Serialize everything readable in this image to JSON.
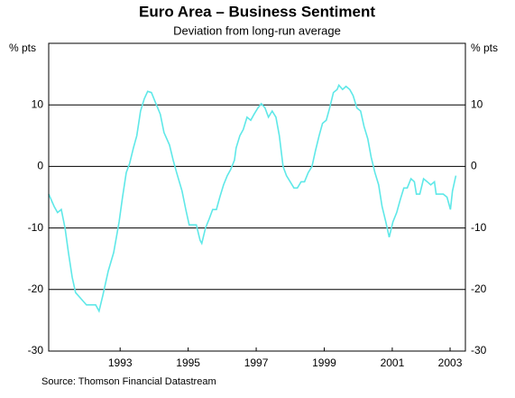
{
  "chart_data": {
    "type": "line",
    "title": "Euro Area – Business Sentiment",
    "subtitle": "Deviation from long-run average",
    "y_label": "% pts",
    "source": "Source: Thomson Financial Datastream",
    "x": [
      1991.4,
      1991.56,
      1991.66,
      1991.77,
      1991.88,
      1991.98,
      1992.09,
      1992.19,
      1992.35,
      1992.51,
      1992.78,
      1992.88,
      1992.99,
      1993.15,
      1993.31,
      1993.47,
      1993.57,
      1993.68,
      1993.78,
      1993.89,
      1993.99,
      1994.1,
      1994.21,
      1994.31,
      1994.42,
      1994.53,
      1994.68,
      1994.79,
      1994.95,
      1995.06,
      1995.16,
      1995.32,
      1995.43,
      1995.53,
      1995.74,
      1995.85,
      1995.9,
      1996.01,
      1996.12,
      1996.22,
      1996.33,
      1996.43,
      1996.54,
      1996.65,
      1996.75,
      1996.86,
      1996.91,
      1997.02,
      1997.12,
      1997.23,
      1997.34,
      1997.44,
      1997.55,
      1997.65,
      1997.76,
      1997.86,
      1997.97,
      1998.08,
      1998.18,
      1998.29,
      1998.39,
      1998.5,
      1998.61,
      1998.71,
      1998.82,
      1998.92,
      1999.03,
      1999.14,
      1999.24,
      1999.35,
      1999.45,
      1999.56,
      1999.66,
      1999.77,
      1999.88,
      1999.93,
      2000.04,
      2000.14,
      2000.25,
      2000.35,
      2000.46,
      2000.57,
      2000.67,
      2000.78,
      2000.88,
      2000.99,
      2001.1,
      2001.2,
      2001.31,
      2001.41,
      2001.52,
      2001.63,
      2001.73,
      2001.84,
      2001.94,
      2002.05,
      2002.15,
      2002.21,
      2002.31,
      2002.42,
      2002.53,
      2002.63,
      2002.74,
      2002.79,
      2003.0,
      2003.11,
      2003.21,
      2003.27,
      2003.37
    ],
    "series": [
      {
        "name": "Business sentiment",
        "color": "#5fe8e8",
        "values": [
          -4.5,
          -6.5,
          -7.5,
          -7,
          -10,
          -14,
          -18,
          -20.5,
          -21.5,
          -22.5,
          -22.5,
          -23.5,
          -21,
          -17,
          -14,
          -9,
          -5,
          -1,
          0.5,
          3,
          5,
          9,
          11,
          12.2,
          12,
          10.5,
          8.5,
          5.5,
          3.5,
          1,
          -1,
          -4,
          -7,
          -9.5,
          -9.5,
          -12,
          -12.5,
          -10,
          -8.5,
          -7,
          -7,
          -5,
          -3,
          -1.5,
          -0.5,
          1,
          3,
          5,
          6,
          8,
          7.5,
          8.5,
          9.5,
          10.2,
          9.5,
          8,
          9,
          8,
          5,
          0,
          -1.5,
          -2.5,
          -3.5,
          -3.5,
          -2.5,
          -2.5,
          -1,
          0,
          2.5,
          5,
          7,
          7.5,
          9.5,
          12,
          12.5,
          13.2,
          12.5,
          13,
          12.5,
          11.5,
          9.5,
          9,
          6.5,
          4.5,
          1.5,
          -1,
          -3,
          -6.5,
          -9,
          -11.5,
          -9,
          -7.5,
          -5.5,
          -3.5,
          -3.5,
          -2,
          -2.5,
          -4.5,
          -4.5,
          -2,
          -2.5,
          -3,
          -2.5,
          -4.5,
          -4.5,
          -5,
          -7,
          -4,
          -1.5
        ]
      }
    ],
    "xlim": [
      1991.4,
      2003.65
    ],
    "xticks": [
      {
        "value": 1993.5,
        "label": "1993"
      },
      {
        "value": 1995.5,
        "label": "1995"
      },
      {
        "value": 1997.5,
        "label": "1997"
      },
      {
        "value": 1999.5,
        "label": "1999"
      },
      {
        "value": 2001.5,
        "label": "2001"
      },
      {
        "value": 2003.2,
        "label": "2003"
      }
    ],
    "ylim": [
      -30,
      20
    ],
    "yticks": [
      -30,
      -20,
      -10,
      0,
      10
    ],
    "grid": true
  }
}
